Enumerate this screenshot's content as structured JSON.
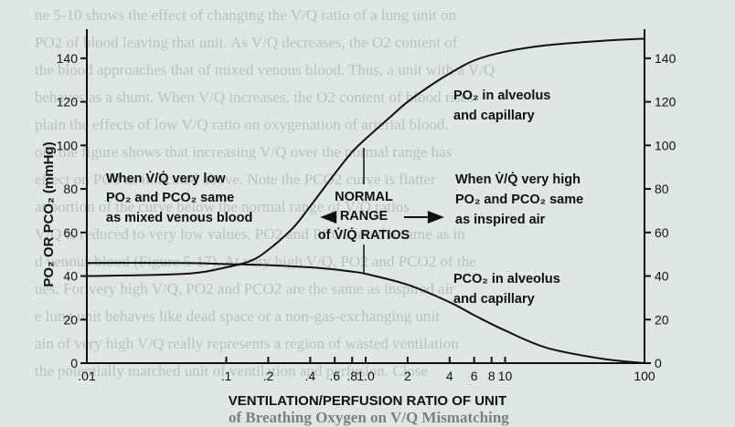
{
  "background_text": [
    "ne 5-10 shows the effect of changing the V/Q ratio of a lung unit on",
    "PO2 of blood leaving that unit. As V/Q decreases, the O2 content of",
    "the blood approaches that of mixed venous blood. Thus, a unit with a V/Q",
    "behaves as a shunt. When V/Q increases, the O2 content of blood rises",
    "plain the effects of low V/Q ratio on oxygenation of arterial blood.",
    "out the figure shows that increasing V/Q over the normal range has",
    "effect on PO2 as indicated above. Note the PCO2 curve is flatter",
    "at portion of the curve below the normal range of V/Q ratios",
    "V/Q is reduced to very low values, PO2 and PCO2 are the same as in",
    "d venous blood (Figure 5-17). At very high V/Q, PO2 and PCO2 of the",
    "ues. For very high V/Q, PO2 and PCO2 are the same as inspired air",
    "e lung unit behaves like dead space or a non-gas-exchanging unit",
    "ain of very high V/Q really represents a region of wasted ventilation",
    "the potentially matched unit of ventilation and perfusion. Close"
  ],
  "bottom_caption": "of Breathing Oxygen on V/Q Mismatching",
  "chart_data": {
    "type": "line",
    "xscale": "log",
    "xlim": [
      0.01,
      100
    ],
    "ylim": [
      0,
      150
    ],
    "xlabel": "VENTILATION/PERFUSION RATIO OF UNIT",
    "ylabel": "PO₂ OR PCO₂ (mmHg)",
    "x_ticks": [
      0.01,
      0.1,
      0.2,
      0.4,
      0.6,
      0.8,
      1.0,
      2,
      4,
      6,
      8,
      10,
      100
    ],
    "x_tick_labels": [
      ".01",
      ".1",
      ".2",
      ".4",
      ".6",
      ".8",
      "1.0",
      "2",
      "4",
      "6",
      "8",
      "10",
      "100"
    ],
    "y_ticks": [
      0,
      20,
      40,
      60,
      80,
      100,
      120,
      140
    ],
    "y_tick_labels": [
      "0",
      "20",
      "40",
      "60",
      "80",
      "100",
      "120",
      "140"
    ],
    "series": [
      {
        "name": "PO₂ in alveolus and capillary",
        "x": [
          0.01,
          0.05,
          0.1,
          0.15,
          0.2,
          0.3,
          0.4,
          0.6,
          0.8,
          1.0,
          1.5,
          2,
          3,
          4,
          6,
          10,
          20,
          50,
          100
        ],
        "y": [
          40,
          41,
          44,
          47,
          52,
          62,
          72,
          87,
          97,
          103,
          113,
          120,
          128,
          133,
          139,
          143,
          146,
          148,
          149
        ]
      },
      {
        "name": "PCO₂ in alveolus and capillary",
        "x": [
          0.01,
          0.05,
          0.1,
          0.2,
          0.4,
          0.6,
          0.8,
          1.0,
          2,
          4,
          6,
          10,
          20,
          50,
          100
        ],
        "y": [
          46,
          46,
          45.5,
          45,
          44,
          43,
          42,
          41,
          36,
          28,
          22,
          15,
          7,
          2,
          0
        ]
      }
    ],
    "annotations": {
      "left": [
        "When V̇/Q̇ very low",
        "PO₂ and PCO₂ same",
        "as mixed venous blood"
      ],
      "center": [
        "NORMAL",
        "RANGE",
        "of V̇/Q̇ RATIOS"
      ],
      "right": [
        "When V̇/Q̇ very high",
        "PO₂ and PCO₂ same",
        "as inspired air"
      ],
      "po2_label": [
        "PO₂ in alveolus",
        "and capillary"
      ],
      "pco2_label": [
        "PCO₂ in alveolus",
        "and capillary"
      ]
    },
    "normal_range": [
      0.6,
      2
    ]
  }
}
